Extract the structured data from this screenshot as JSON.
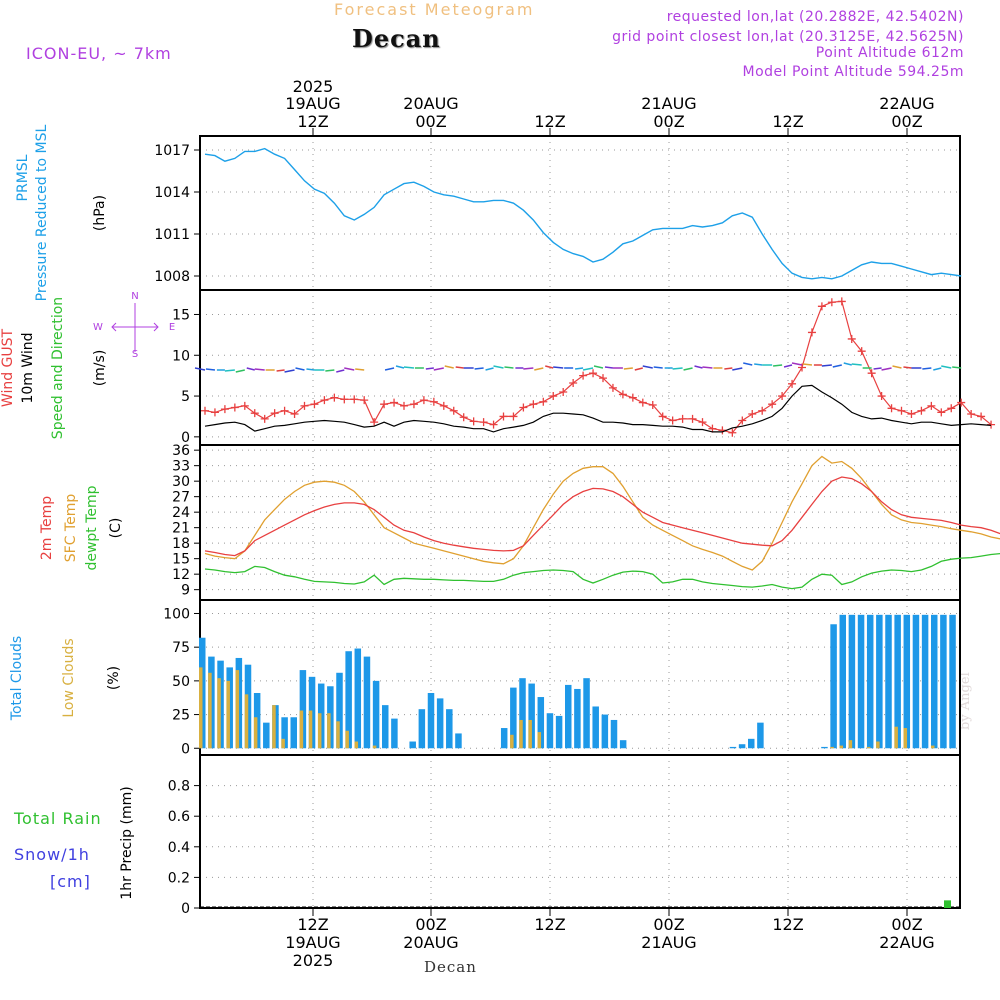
{
  "header": {
    "title": "Forecast Meteogram",
    "station": "Decan",
    "model": "ICON-EU, ~ 7km",
    "requested": "requested lon,lat (20.2882E, 42.5402N)",
    "gridpoint": "grid point closest lon,lat (20.3125E, 42.5625N)",
    "altitude": "Point Altitude 612m",
    "model_altitude": "Model Point Altitude 594.25m"
  },
  "footer": {
    "station": "Decan",
    "credit": "by Angel"
  },
  "time_axis": {
    "top_labels": [
      {
        "day": "19AUG",
        "hour": "12Z",
        "year": "2025"
      },
      {
        "day": "20AUG",
        "hour": "00Z",
        "year": ""
      },
      {
        "day": "",
        "hour": "12Z",
        "year": ""
      },
      {
        "day": "21AUG",
        "hour": "00Z",
        "year": ""
      },
      {
        "day": "",
        "hour": "12Z",
        "year": ""
      },
      {
        "day": "22AUG",
        "hour": "00Z",
        "year": ""
      }
    ],
    "bottom_labels": [
      {
        "hour": "12Z",
        "day": "19AUG",
        "year": "2025"
      },
      {
        "hour": "00Z",
        "day": "20AUG",
        "year": ""
      },
      {
        "hour": "12Z",
        "day": "",
        "year": ""
      },
      {
        "hour": "00Z",
        "day": "21AUG",
        "year": ""
      },
      {
        "hour": "12Z",
        "day": "",
        "year": ""
      },
      {
        "hour": "00Z",
        "day": "22AUG",
        "year": ""
      }
    ]
  },
  "labels": {
    "pressure": {
      "name": "PRMSL",
      "desc": "Pressure Reduced to MSL",
      "unit": "(hPa)"
    },
    "wind": {
      "gust": "Wind GUST",
      "wind": "10m Wind",
      "speed": "Speed and Direction",
      "unit": "(m/s)",
      "compass_n": "N",
      "compass_s": "S",
      "compass_w": "W",
      "compass_e": "E"
    },
    "temp": {
      "t2m": "2m Temp",
      "sfc": "SFC Temp",
      "dew": "dewpt Temp",
      "unit": "(C)"
    },
    "clouds": {
      "total": "Total Clouds",
      "low": "Low Clouds",
      "unit": "(%)"
    },
    "precip": {
      "rain": "Total  Rain",
      "snow": "Snow/1h",
      "cm": "[cm]",
      "axis": "1hr Precip (mm)"
    }
  },
  "colors": {
    "pressure": "#1da0e8",
    "gust": "#e84040",
    "wind": "#000000",
    "t2m": "#e84040",
    "sfc": "#e0a030",
    "dew": "#30c030",
    "total_cloud": "#1d98e8",
    "low_cloud": "#d8b040",
    "rain": "#30c030"
  },
  "chart_data": [
    {
      "type": "line",
      "title": "PRMSL",
      "x_hours_from_start": [
        0,
        1,
        2,
        3,
        4,
        5,
        6,
        7,
        8,
        9,
        10,
        11,
        12,
        13,
        14,
        15,
        16,
        17,
        18,
        19,
        20,
        21,
        22,
        23,
        24,
        25,
        26,
        27,
        28,
        29,
        30,
        31,
        32,
        33,
        34,
        35,
        36,
        37,
        38,
        39,
        40,
        41,
        42,
        43,
        44,
        45,
        46,
        47,
        48,
        49,
        50,
        51,
        52,
        53,
        54,
        55,
        56,
        57,
        58,
        59,
        60,
        61,
        62,
        63,
        64,
        65,
        66,
        67,
        68,
        69,
        70,
        71,
        72,
        73,
        74,
        75,
        76
      ],
      "series": [
        {
          "name": "PRMSL",
          "values": [
            1016.7,
            1016.6,
            1016.2,
            1016.4,
            1016.9,
            1016.9,
            1017.1,
            1016.7,
            1016.4,
            1015.6,
            1014.8,
            1014.2,
            1013.9,
            1013.2,
            1012.3,
            1012.0,
            1012.4,
            1012.9,
            1013.8,
            1014.2,
            1014.6,
            1014.7,
            1014.4,
            1014.0,
            1013.8,
            1013.7,
            1013.5,
            1013.3,
            1013.3,
            1013.4,
            1013.4,
            1013.2,
            1012.7,
            1012.0,
            1011.1,
            1010.4,
            1009.9,
            1009.6,
            1009.4,
            1009.0,
            1009.2,
            1009.7,
            1010.3,
            1010.5,
            1010.9,
            1011.3,
            1011.4,
            1011.4,
            1011.4,
            1011.6,
            1011.5,
            1011.6,
            1011.8,
            1012.3,
            1012.5,
            1012.2,
            1011.0,
            1009.9,
            1008.9,
            1008.2,
            1007.9,
            1007.8,
            1007.9,
            1007.8,
            1008.0,
            1008.4,
            1008.8,
            1009.0,
            1008.9,
            1008.9,
            1008.7,
            1008.5,
            1008.3,
            1008.1,
            1008.2,
            1008.1,
            1008.0
          ]
        }
      ],
      "yticks": [
        1008,
        1011,
        1014,
        1017
      ],
      "ylim": [
        1007,
        1018
      ],
      "ylabel": "(hPa)"
    },
    {
      "type": "line",
      "title": "Wind",
      "series": [
        {
          "name": "Wind GUST",
          "values": [
            3.2,
            3.0,
            3.4,
            3.6,
            3.8,
            2.9,
            2.2,
            2.9,
            3.2,
            2.8,
            3.8,
            4.0,
            4.5,
            4.8,
            4.6,
            4.6,
            4.5,
            1.8,
            4.0,
            4.2,
            3.8,
            4.0,
            4.5,
            4.3,
            3.8,
            3.2,
            2.4,
            1.9,
            1.8,
            1.5,
            2.5,
            2.5,
            3.6,
            4.0,
            4.3,
            5.0,
            5.5,
            6.6,
            7.5,
            7.8,
            7.2,
            6.0,
            5.2,
            4.8,
            4.2,
            3.9,
            2.5,
            2.0,
            2.2,
            2.2,
            1.8,
            1.0,
            0.8,
            0.5,
            2.0,
            2.8,
            3.2,
            4.0,
            5.0,
            6.5,
            8.5,
            12.8,
            16.0,
            16.5,
            16.6,
            12.0,
            10.5,
            7.8,
            5.0,
            3.5,
            3.2,
            2.8,
            3.2,
            3.8,
            3.0,
            3.5,
            4.2,
            2.8,
            2.5,
            1.5
          ]
        },
        {
          "name": "10m Wind",
          "values": [
            1.3,
            1.5,
            1.7,
            1.8,
            1.5,
            0.7,
            1.0,
            1.3,
            1.4,
            1.6,
            1.8,
            1.9,
            2.0,
            1.9,
            1.8,
            1.5,
            1.2,
            1.3,
            1.8,
            1.3,
            1.8,
            2.0,
            1.9,
            1.8,
            1.6,
            1.3,
            1.2,
            1.0,
            1.0,
            0.6,
            1.0,
            1.2,
            1.4,
            1.8,
            2.5,
            2.9,
            2.9,
            2.8,
            2.7,
            2.3,
            1.8,
            1.8,
            1.7,
            1.5,
            1.5,
            1.4,
            1.3,
            1.3,
            1.2,
            0.9,
            0.9,
            0.6,
            0.6,
            1.1,
            1.3,
            1.6,
            2.0,
            2.5,
            3.5,
            5.0,
            6.2,
            6.3,
            5.5,
            4.8,
            4.0,
            3.0,
            2.5,
            2.2,
            2.3,
            2.0,
            1.8,
            1.6,
            1.8,
            1.8,
            1.6,
            1.4,
            1.5,
            1.6,
            1.5,
            1.4
          ]
        }
      ],
      "yticks": [
        0,
        5,
        10,
        15
      ],
      "ylim": [
        -1,
        18
      ],
      "ylabel": "(m/s)"
    },
    {
      "type": "line",
      "title": "Temperature",
      "series": [
        {
          "name": "2m Temp",
          "values": [
            16.5,
            16.2,
            15.8,
            15.6,
            16.5,
            18.5,
            19.5,
            20.5,
            21.5,
            22.5,
            23.5,
            24.3,
            25.0,
            25.5,
            25.8,
            25.8,
            25.5,
            24.5,
            23.0,
            21.5,
            20.5,
            20.0,
            19.2,
            18.5,
            18.0,
            17.6,
            17.3,
            17.0,
            16.8,
            16.6,
            16.5,
            16.6,
            17.5,
            19.5,
            21.5,
            23.5,
            25.5,
            27.0,
            28.0,
            28.6,
            28.5,
            28.0,
            27.0,
            25.5,
            24.0,
            23.0,
            22.0,
            21.5,
            21.0,
            20.5,
            20.0,
            19.5,
            19.0,
            18.5,
            18.0,
            17.8,
            17.6,
            17.5,
            18.5,
            20.5,
            23.0,
            25.5,
            28.0,
            30.0,
            30.8,
            30.5,
            29.5,
            28.0,
            26.0,
            24.5,
            23.5,
            23.0,
            22.8,
            22.6,
            22.4,
            22.0,
            21.5,
            21.2,
            21.0,
            20.5,
            19.8
          ]
        },
        {
          "name": "SFC Temp",
          "values": [
            16.0,
            15.5,
            15.2,
            15.0,
            16.5,
            19.5,
            22.5,
            24.5,
            26.5,
            28.0,
            29.2,
            29.8,
            30.0,
            29.8,
            29.2,
            28.0,
            26.0,
            23.5,
            21.0,
            20.0,
            19.0,
            18.0,
            17.5,
            17.0,
            16.5,
            16.0,
            15.5,
            15.0,
            14.5,
            14.2,
            14.0,
            15.0,
            17.5,
            21.0,
            24.5,
            27.5,
            30.0,
            31.5,
            32.5,
            32.8,
            32.8,
            31.5,
            29.0,
            26.0,
            23.0,
            21.5,
            20.5,
            19.5,
            18.5,
            17.5,
            16.8,
            16.2,
            15.5,
            14.5,
            13.5,
            12.8,
            14.5,
            18.0,
            22.0,
            26.0,
            29.5,
            33.0,
            34.8,
            33.5,
            33.8,
            32.5,
            30.5,
            28.0,
            25.5,
            23.5,
            22.5,
            22.0,
            21.8,
            21.5,
            21.2,
            20.8,
            20.5,
            20.2,
            19.8,
            19.2,
            18.8
          ]
        },
        {
          "name": "dewpt Temp",
          "values": [
            13.0,
            12.8,
            12.5,
            12.3,
            12.5,
            13.5,
            13.3,
            12.5,
            11.8,
            11.5,
            11.0,
            10.6,
            10.5,
            10.4,
            10.2,
            10.1,
            10.5,
            11.8,
            10.0,
            11.0,
            11.2,
            11.1,
            11.0,
            11.0,
            10.9,
            10.8,
            10.8,
            10.7,
            10.6,
            10.6,
            11.0,
            11.8,
            12.3,
            12.5,
            12.7,
            12.8,
            12.7,
            12.5,
            11.0,
            10.3,
            11.0,
            11.8,
            12.4,
            12.6,
            12.5,
            12.0,
            10.3,
            10.5,
            11.0,
            11.0,
            10.5,
            10.2,
            10.0,
            9.8,
            9.6,
            9.5,
            9.7,
            10.0,
            9.5,
            9.2,
            9.5,
            11.0,
            12.0,
            11.8,
            10.0,
            10.5,
            11.5,
            12.2,
            12.6,
            12.8,
            12.7,
            12.5,
            12.8,
            13.5,
            14.5,
            14.9,
            15.1,
            15.2,
            15.5,
            15.8,
            16.0
          ]
        }
      ],
      "yticks": [
        9,
        12,
        15,
        18,
        21,
        24,
        27,
        30,
        33,
        36
      ],
      "ylim": [
        7,
        37
      ],
      "ylabel": "(C)"
    },
    {
      "type": "bar",
      "title": "Clouds",
      "series": [
        {
          "name": "Total Clouds",
          "values": [
            82,
            68,
            65,
            60,
            67,
            62,
            41,
            19,
            32,
            23,
            23,
            58,
            53,
            48,
            46,
            56,
            72,
            74,
            68,
            50,
            32,
            22,
            0,
            5,
            29,
            41,
            37,
            29,
            11,
            0,
            0,
            0,
            0,
            15,
            45,
            52,
            48,
            38,
            26,
            24,
            47,
            44,
            52,
            31,
            25,
            21,
            6,
            0,
            0,
            0,
            0,
            0,
            0,
            0,
            0,
            0,
            0,
            0,
            1,
            3,
            7,
            19,
            0,
            0,
            0,
            0,
            0,
            0,
            1,
            92,
            99,
            99,
            99,
            99,
            99,
            99,
            99,
            99,
            99,
            99,
            99,
            99,
            99
          ]
        },
        {
          "name": "Low Clouds",
          "values": [
            60,
            56,
            52,
            50,
            58,
            40,
            23,
            0,
            32,
            7,
            0,
            28,
            28,
            26,
            26,
            20,
            13,
            5,
            0,
            2,
            0,
            0,
            0,
            0,
            0,
            0,
            0,
            0,
            0,
            0,
            0,
            0,
            0,
            0,
            10,
            21,
            21,
            12,
            0,
            0,
            0,
            0,
            0,
            0,
            0,
            0,
            0,
            0,
            0,
            0,
            0,
            0,
            0,
            0,
            0,
            0,
            0,
            0,
            0,
            0,
            0,
            0,
            0,
            0,
            0,
            0,
            0,
            0,
            0,
            1,
            2,
            6,
            0,
            1,
            5,
            0,
            16,
            15,
            0,
            0,
            2,
            0
          ]
        }
      ],
      "yticks": [
        0,
        25,
        50,
        75,
        100
      ],
      "ylim": [
        -5,
        110
      ],
      "ylabel": "(%)"
    },
    {
      "type": "bar",
      "title": "Precip",
      "series": [
        {
          "name": "Total Rain",
          "values": [
            {
              "hour": 75,
              "value": 0.05
            }
          ]
        }
      ],
      "yticks": [
        0,
        0.2,
        0.4,
        0.6,
        0.8
      ],
      "ylim": [
        0,
        1.0
      ],
      "ylabel": "1hr Precip (mm)"
    }
  ]
}
